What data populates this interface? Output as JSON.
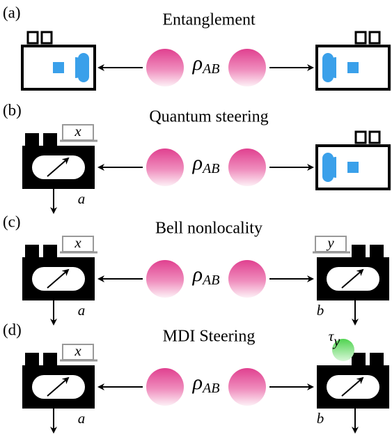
{
  "panels": [
    {
      "label": "(a)",
      "title": "Entanglement",
      "state": {
        "symbol": "ρ",
        "subscript": "AB"
      }
    },
    {
      "label": "(b)",
      "title": "Quantum steering",
      "state": {
        "symbol": "ρ",
        "subscript": "AB"
      },
      "alice": {
        "input": "x",
        "output": "a"
      }
    },
    {
      "label": "(c)",
      "title": "Bell nonlocality",
      "state": {
        "symbol": "ρ",
        "subscript": "AB"
      },
      "alice": {
        "input": "x",
        "output": "a"
      },
      "bob": {
        "input": "y",
        "output": "b"
      }
    },
    {
      "label": "(d)",
      "title": "MDI Steering",
      "state": {
        "symbol": "ρ",
        "subscript": "AB"
      },
      "alice": {
        "input": "x",
        "output": "a"
      },
      "bob": {
        "quantum_input": {
          "symbol": "τ",
          "subscript": "y"
        },
        "output": "b"
      }
    }
  ]
}
